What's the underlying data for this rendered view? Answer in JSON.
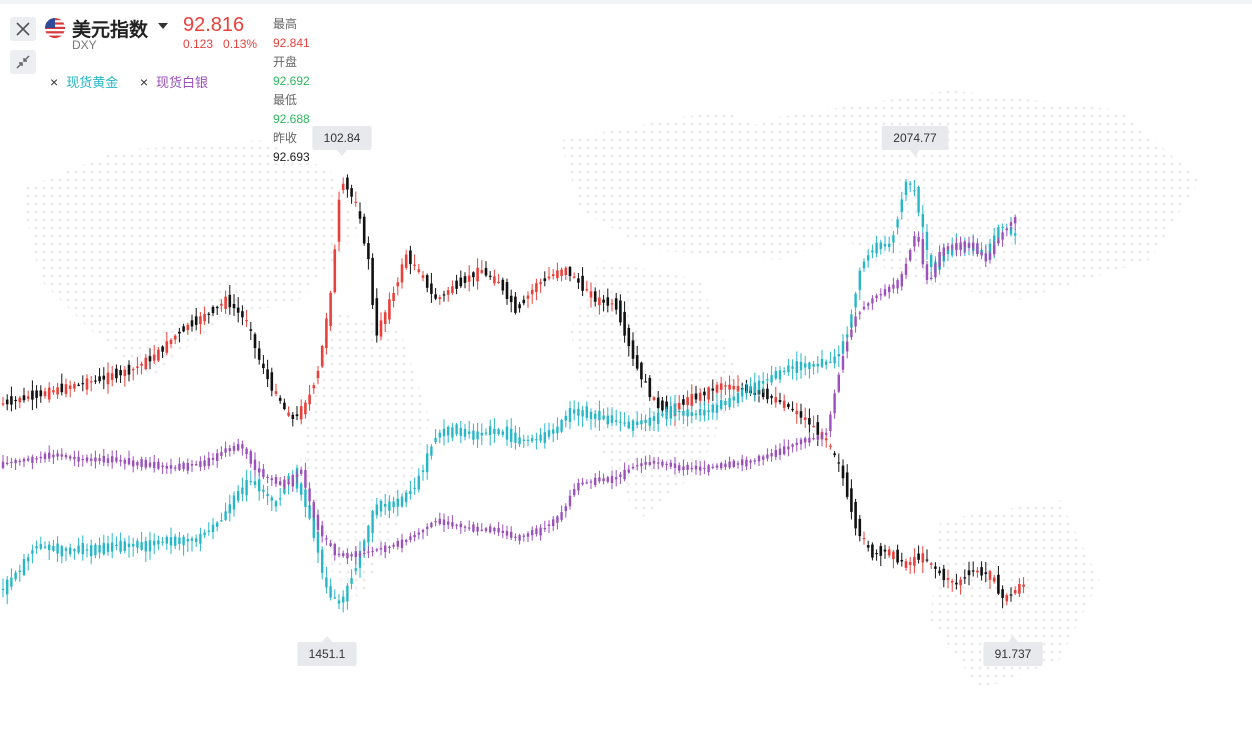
{
  "header": {
    "name": "美元指数",
    "code": "DXY",
    "price": "92.816",
    "change": "0.123",
    "change_pct": "0.13%",
    "stats": {
      "high_label": "最高",
      "high": "92.841",
      "open_label": "开盘",
      "open": "92.692",
      "low_label": "最低",
      "low": "92.688",
      "prev_close_label": "昨收",
      "prev_close": "92.693"
    },
    "icons": [
      "us-flag-icon",
      "caret-down-icon",
      "close-icon",
      "shrink-icon"
    ]
  },
  "legend": [
    {
      "remove_icon": "×",
      "label": "现货黄金",
      "color": "#26b7c9"
    },
    {
      "remove_icon": "×",
      "label": "现货白银",
      "color": "#9b50ba"
    }
  ],
  "colors": {
    "up": "#e8413b",
    "down": "#111111",
    "gold": "#26b7c9",
    "silver": "#9b50ba",
    "background_map": "#eeeeee",
    "label_bg": "#e7e9ec"
  },
  "chart_data": {
    "type": "candlestick",
    "series": [
      {
        "name": "美元指数",
        "label_high": "102.84",
        "label_low": "91.737",
        "points": [
          [
            0,
            405
          ],
          [
            40,
            395
          ],
          [
            60,
            390
          ],
          [
            100,
            380
          ],
          [
            135,
            370
          ],
          [
            160,
            355
          ],
          [
            185,
            330
          ],
          [
            210,
            315
          ],
          [
            230,
            300
          ],
          [
            250,
            320
          ],
          [
            265,
            365
          ],
          [
            280,
            395
          ],
          [
            295,
            420
          ],
          [
            310,
            405
          ],
          [
            322,
            370
          ],
          [
            335,
            295
          ],
          [
            345,
            175
          ],
          [
            360,
            205
          ],
          [
            372,
            255
          ],
          [
            380,
            335
          ],
          [
            395,
            300
          ],
          [
            410,
            255
          ],
          [
            425,
            275
          ],
          [
            440,
            300
          ],
          [
            460,
            285
          ],
          [
            485,
            270
          ],
          [
            505,
            285
          ],
          [
            520,
            310
          ],
          [
            540,
            285
          ],
          [
            555,
            275
          ],
          [
            570,
            270
          ],
          [
            585,
            285
          ],
          [
            600,
            300
          ],
          [
            620,
            305
          ],
          [
            640,
            365
          ],
          [
            660,
            405
          ],
          [
            675,
            410
          ],
          [
            690,
            400
          ],
          [
            705,
            395
          ],
          [
            725,
            385
          ],
          [
            750,
            390
          ],
          [
            770,
            395
          ],
          [
            790,
            405
          ],
          [
            810,
            420
          ],
          [
            830,
            440
          ],
          [
            845,
            470
          ],
          [
            860,
            525
          ],
          [
            875,
            555
          ],
          [
            890,
            550
          ],
          [
            910,
            565
          ],
          [
            925,
            555
          ],
          [
            945,
            575
          ],
          [
            960,
            585
          ],
          [
            975,
            570
          ],
          [
            995,
            575
          ],
          [
            1008,
            600
          ],
          [
            1025,
            585
          ]
        ]
      },
      {
        "name": "现货黄金",
        "label_high": "2074.77",
        "label_low": "1451.1",
        "points": [
          [
            0,
            595
          ],
          [
            20,
            575
          ],
          [
            40,
            545
          ],
          [
            60,
            550
          ],
          [
            90,
            550
          ],
          [
            120,
            545
          ],
          [
            150,
            545
          ],
          [
            175,
            540
          ],
          [
            200,
            540
          ],
          [
            225,
            520
          ],
          [
            240,
            495
          ],
          [
            255,
            480
          ],
          [
            265,
            490
          ],
          [
            280,
            505
          ],
          [
            295,
            470
          ],
          [
            310,
            505
          ],
          [
            322,
            550
          ],
          [
            330,
            590
          ],
          [
            345,
            605
          ],
          [
            360,
            565
          ],
          [
            380,
            505
          ],
          [
            400,
            505
          ],
          [
            420,
            485
          ],
          [
            440,
            435
          ],
          [
            460,
            430
          ],
          [
            480,
            435
          ],
          [
            500,
            430
          ],
          [
            520,
            440
          ],
          [
            540,
            440
          ],
          [
            560,
            430
          ],
          [
            575,
            410
          ],
          [
            595,
            415
          ],
          [
            615,
            420
          ],
          [
            635,
            425
          ],
          [
            655,
            420
          ],
          [
            675,
            410
          ],
          [
            695,
            415
          ],
          [
            715,
            410
          ],
          [
            735,
            400
          ],
          [
            760,
            385
          ],
          [
            780,
            375
          ],
          [
            800,
            365
          ],
          [
            820,
            365
          ],
          [
            840,
            360
          ],
          [
            852,
            330
          ],
          [
            865,
            265
          ],
          [
            880,
            245
          ],
          [
            895,
            245
          ],
          [
            910,
            180
          ],
          [
            920,
            195
          ],
          [
            935,
            270
          ],
          [
            950,
            250
          ],
          [
            970,
            245
          ],
          [
            990,
            255
          ],
          [
            1005,
            225
          ],
          [
            1018,
            235
          ]
        ]
      },
      {
        "name": "现货白银",
        "points": [
          [
            0,
            465
          ],
          [
            30,
            460
          ],
          [
            60,
            455
          ],
          [
            90,
            460
          ],
          [
            120,
            460
          ],
          [
            150,
            465
          ],
          [
            180,
            468
          ],
          [
            210,
            462
          ],
          [
            230,
            450
          ],
          [
            245,
            445
          ],
          [
            260,
            470
          ],
          [
            275,
            480
          ],
          [
            290,
            485
          ],
          [
            305,
            470
          ],
          [
            320,
            525
          ],
          [
            340,
            555
          ],
          [
            360,
            555
          ],
          [
            380,
            550
          ],
          [
            400,
            545
          ],
          [
            420,
            535
          ],
          [
            440,
            520
          ],
          [
            460,
            525
          ],
          [
            480,
            530
          ],
          [
            500,
            530
          ],
          [
            520,
            538
          ],
          [
            545,
            530
          ],
          [
            565,
            515
          ],
          [
            580,
            485
          ],
          [
            600,
            480
          ],
          [
            620,
            478
          ],
          [
            640,
            465
          ],
          [
            660,
            462
          ],
          [
            685,
            468
          ],
          [
            710,
            468
          ],
          [
            735,
            465
          ],
          [
            760,
            460
          ],
          [
            785,
            450
          ],
          [
            810,
            440
          ],
          [
            830,
            435
          ],
          [
            848,
            350
          ],
          [
            860,
            315
          ],
          [
            875,
            300
          ],
          [
            890,
            290
          ],
          [
            905,
            280
          ],
          [
            920,
            230
          ],
          [
            932,
            285
          ],
          [
            945,
            250
          ],
          [
            960,
            245
          ],
          [
            975,
            245
          ],
          [
            990,
            260
          ],
          [
            1005,
            235
          ],
          [
            1018,
            218
          ]
        ]
      }
    ]
  }
}
